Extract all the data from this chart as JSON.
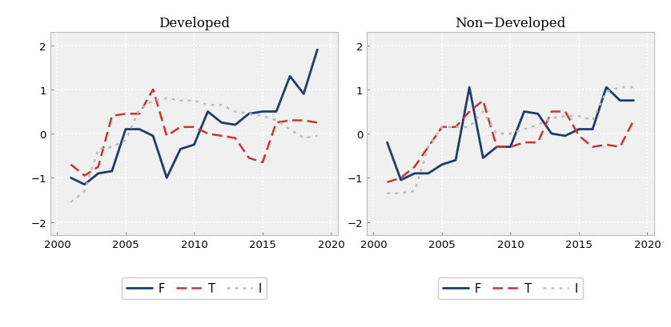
{
  "years": [
    2001,
    2002,
    2003,
    2004,
    2005,
    2006,
    2007,
    2008,
    2009,
    2010,
    2011,
    2012,
    2013,
    2014,
    2015,
    2016,
    2017,
    2018,
    2019
  ],
  "developed": {
    "F": [
      -1.0,
      -1.15,
      -0.9,
      -0.85,
      0.1,
      0.1,
      -0.05,
      -1.0,
      -0.35,
      -0.25,
      0.5,
      0.25,
      0.2,
      0.45,
      0.5,
      0.5,
      1.3,
      0.9,
      1.9
    ],
    "T": [
      -0.7,
      -0.95,
      -0.75,
      0.4,
      0.45,
      0.45,
      1.0,
      -0.05,
      0.15,
      0.15,
      0.0,
      -0.05,
      -0.1,
      -0.55,
      -0.65,
      0.25,
      0.3,
      0.3,
      0.25
    ],
    "I": [
      -1.55,
      -1.3,
      -0.35,
      -0.3,
      -0.15,
      0.55,
      0.75,
      0.8,
      0.75,
      0.75,
      0.65,
      0.65,
      0.5,
      0.45,
      0.4,
      0.3,
      0.1,
      -0.1,
      -0.05
    ]
  },
  "non_developed": {
    "F": [
      -0.2,
      -1.05,
      -0.9,
      -0.9,
      -0.7,
      -0.6,
      1.05,
      -0.55,
      -0.3,
      -0.3,
      0.5,
      0.45,
      0.0,
      -0.05,
      0.1,
      0.1,
      1.05,
      0.75,
      0.75
    ],
    "T": [
      -1.1,
      -1.0,
      -0.75,
      -0.3,
      0.15,
      0.15,
      0.5,
      0.75,
      -0.3,
      -0.3,
      -0.2,
      -0.2,
      0.5,
      0.5,
      -0.05,
      -0.3,
      -0.25,
      -0.3,
      0.3
    ],
    "I": [
      -1.35,
      -1.35,
      -1.3,
      -0.3,
      0.15,
      0.15,
      0.15,
      0.5,
      0.0,
      0.0,
      0.1,
      0.2,
      0.35,
      0.4,
      0.4,
      0.3,
      0.95,
      1.05,
      1.05
    ]
  },
  "titles": [
    "Developed",
    "Non−Developed"
  ],
  "legend_labels": [
    "F",
    "T",
    "I"
  ],
  "F_color": "#1f3a6e",
  "T_color": "#cc3333",
  "I_color": "#bbbbbb",
  "F_linewidth": 2.0,
  "T_linewidth": 1.8,
  "I_linewidth": 1.8,
  "ylim": [
    -2.3,
    2.3
  ],
  "yticks": [
    -2,
    -1,
    0,
    1,
    2
  ],
  "xlim": [
    1999.5,
    2020.5
  ],
  "xticks": [
    2000,
    2005,
    2010,
    2015,
    2020
  ],
  "bg_color": "#f0f0f0",
  "grid_color": "#ffffff",
  "title_fontsize": 12,
  "tick_fontsize": 9.5,
  "legend_fontsize": 10.5
}
